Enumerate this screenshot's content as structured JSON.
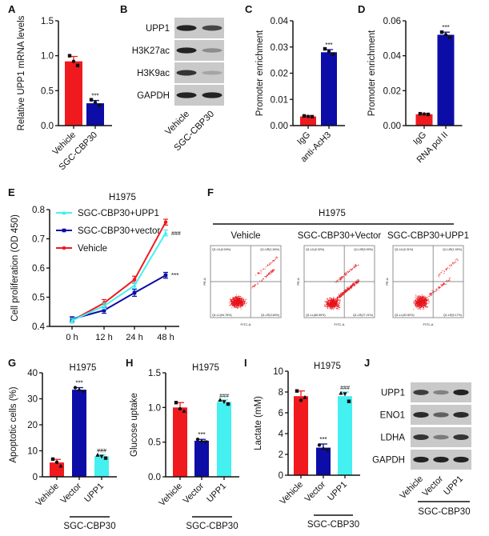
{
  "colors": {
    "red": "#f01a1e",
    "blue": "#0c0ca6",
    "cyan": "#45f0f0",
    "blot_bg": "#c9c9c9",
    "band": "#1a1a1a",
    "dot": "#e8141c"
  },
  "chart_data": [
    {
      "panel": "A",
      "type": "bar",
      "ylabel": "Relative UPP1 mRNA levels",
      "ylim": [
        0,
        1.5
      ],
      "yticks": [
        "0.0",
        "0.5",
        "1.0",
        "1.5"
      ],
      "ytick_values": [
        0,
        0.5,
        1.0,
        1.5
      ],
      "categories": [
        "Vehicle",
        "SGC-CBP30"
      ],
      "values": [
        0.92,
        0.32
      ],
      "errors": [
        0.07,
        0.04
      ],
      "replicates": [
        [
          1.0,
          0.92,
          0.86
        ],
        [
          0.37,
          0.33,
          0.29
        ]
      ],
      "colors": [
        "red",
        "blue"
      ],
      "annotations": [
        "",
        "***"
      ],
      "title": "",
      "group_label": ""
    },
    {
      "panel": "C",
      "type": "bar",
      "ylabel": "Promoter enrichment",
      "ylim": [
        0,
        0.04
      ],
      "yticks": [
        "0.00",
        "0.01",
        "0.02",
        "0.03",
        "0.04"
      ],
      "ytick_values": [
        0,
        0.01,
        0.02,
        0.03,
        0.04
      ],
      "categories": [
        "IgG",
        "anti-AcH3"
      ],
      "values": [
        0.0035,
        0.028
      ],
      "errors": [
        0.0003,
        0.001
      ],
      "replicates": [
        [
          0.0037,
          0.0035,
          0.0034
        ],
        [
          0.0293,
          0.0283,
          0.0273
        ]
      ],
      "colors": [
        "red",
        "blue"
      ],
      "annotations": [
        "",
        "***"
      ],
      "title": "",
      "group_label": ""
    },
    {
      "panel": "D",
      "type": "bar",
      "ylabel": "Promoter enrichment",
      "ylim": [
        0,
        0.06
      ],
      "yticks": [
        "0.00",
        "0.02",
        "0.04",
        "0.06"
      ],
      "ytick_values": [
        0,
        0.02,
        0.04,
        0.06
      ],
      "categories": [
        "IgG",
        "RNA pol II"
      ],
      "values": [
        0.0065,
        0.052
      ],
      "errors": [
        0.0004,
        0.0015
      ],
      "replicates": [
        [
          0.0068,
          0.0066,
          0.0064
        ],
        [
          0.0535,
          0.052,
          0.0505
        ]
      ],
      "colors": [
        "red",
        "blue"
      ],
      "annotations": [
        "",
        "***"
      ],
      "title": "",
      "group_label": ""
    },
    {
      "panel": "E",
      "type": "line",
      "title": "H1975",
      "ylabel": "Cell proliferation (OD 450)",
      "xlabel": "",
      "x": [
        "0 h",
        "12 h",
        "24 h",
        "48 h"
      ],
      "ylim": [
        0.4,
        0.8
      ],
      "yticks": [
        "0.4",
        "0.5",
        "0.6",
        "0.7",
        "0.8"
      ],
      "ytick_values": [
        0.4,
        0.5,
        0.6,
        0.7,
        0.8
      ],
      "legend_position": "top-left",
      "series": [
        {
          "name": "SGC-CBP30+UPP1",
          "color": "cyan",
          "marker": "triangle",
          "values": [
            0.42,
            0.47,
            0.54,
            0.72
          ],
          "errors": [
            0.008,
            0.01,
            0.01,
            0.01
          ],
          "annotation": "###"
        },
        {
          "name": "SGC-CBP30+vector",
          "color": "blue",
          "marker": "square",
          "values": [
            0.425,
            0.455,
            0.515,
            0.575
          ],
          "errors": [
            0.008,
            0.01,
            0.012,
            0.01
          ],
          "annotation": "***"
        },
        {
          "name": "Vehicle",
          "color": "red",
          "marker": "circle",
          "values": [
            0.42,
            0.48,
            0.56,
            0.757
          ],
          "errors": [
            0.008,
            0.012,
            0.012,
            0.01
          ],
          "annotation": ""
        }
      ]
    },
    {
      "panel": "G",
      "type": "bar",
      "title": "H1975",
      "ylabel": "Apoptotic cells (%)",
      "ylim": [
        0,
        40
      ],
      "yticks": [
        "0",
        "10",
        "20",
        "30",
        "40"
      ],
      "ytick_values": [
        0,
        10,
        20,
        30,
        40
      ],
      "categories": [
        "Vehicle",
        "Vector",
        "UPP1"
      ],
      "values": [
        5.5,
        33.5,
        7.8
      ],
      "errors": [
        1.2,
        0.8,
        0.6
      ],
      "replicates": [
        [
          6.8,
          5.6,
          4.2
        ],
        [
          34.3,
          33.6,
          32.7
        ],
        [
          8.4,
          7.8,
          7.2
        ]
      ],
      "colors": [
        "red",
        "blue",
        "cyan"
      ],
      "annotations": [
        "",
        "***",
        "###"
      ],
      "group_label": "SGC-CBP30"
    },
    {
      "panel": "H",
      "type": "bar",
      "title": "H1975",
      "ylabel": "Glucose uptake",
      "ylim": [
        0,
        1.5
      ],
      "yticks": [
        "0.0",
        "0.5",
        "1.0",
        "1.5"
      ],
      "ytick_values": [
        0,
        0.5,
        1.0,
        1.5
      ],
      "categories": [
        "Vehicle",
        "Vector",
        "UPP1"
      ],
      "values": [
        1.0,
        0.52,
        1.08
      ],
      "errors": [
        0.07,
        0.02,
        0.03
      ],
      "replicates": [
        [
          1.07,
          0.98,
          0.95
        ],
        [
          0.54,
          0.52,
          0.5
        ],
        [
          1.11,
          1.08,
          1.05
        ]
      ],
      "colors": [
        "red",
        "blue",
        "cyan"
      ],
      "annotations": [
        "",
        "***",
        "###"
      ],
      "group_label": "SGC-CBP30"
    },
    {
      "panel": "I",
      "type": "bar",
      "title": "H1975",
      "ylabel": "Lactate (mM)",
      "ylim": [
        0,
        10
      ],
      "yticks": [
        "0",
        "2",
        "4",
        "6",
        "8",
        "10"
      ],
      "ytick_values": [
        0,
        2,
        4,
        6,
        8,
        10
      ],
      "categories": [
        "Vehicle",
        "Vector",
        "UPP1"
      ],
      "values": [
        7.6,
        2.65,
        7.6
      ],
      "errors": [
        0.5,
        0.35,
        0.4
      ],
      "replicates": [
        [
          8.1,
          7.2,
          7.5
        ],
        [
          2.9,
          2.6,
          2.4
        ],
        [
          7.9,
          7.8,
          7.1
        ]
      ],
      "colors": [
        "red",
        "blue",
        "cyan"
      ],
      "annotations": [
        "",
        "***",
        "###"
      ],
      "group_label": "SGC-CBP30"
    }
  ],
  "panel_letters": {
    "A": "A",
    "B": "B",
    "C": "C",
    "D": "D",
    "E": "E",
    "F": "F",
    "G": "G",
    "H": "H",
    "I": "I",
    "J": "J"
  },
  "blot_B": {
    "rows": [
      {
        "label": "UPP1",
        "band_intensity": [
          0.95,
          0.75
        ]
      },
      {
        "label": "H3K27ac",
        "band_intensity": [
          0.95,
          0.35
        ]
      },
      {
        "label": "H3K9ac",
        "band_intensity": [
          0.85,
          0.2
        ]
      },
      {
        "label": "GAPDH",
        "band_intensity": [
          0.95,
          0.95
        ]
      }
    ],
    "lanes": [
      "Vehicle",
      "SGC-CBP30"
    ],
    "group_label": ""
  },
  "blot_J": {
    "rows": [
      {
        "label": "UPP1",
        "band_intensity": [
          0.8,
          0.4,
          0.95
        ]
      },
      {
        "label": "ENO1",
        "band_intensity": [
          0.9,
          0.6,
          0.9
        ]
      },
      {
        "label": "LDHA",
        "band_intensity": [
          0.85,
          0.45,
          0.85
        ]
      },
      {
        "label": "GAPDH",
        "band_intensity": [
          0.95,
          0.95,
          0.95
        ]
      }
    ],
    "lanes": [
      "Vehicle",
      "Vector",
      "UPP1"
    ],
    "group_label": "SGC-CBP30"
  },
  "flow_F": {
    "title": "H1975",
    "xaxis": "FITC-A",
    "yaxis": "PE-A",
    "plots": [
      {
        "label": "Vehicle",
        "quadrants": {
          "UL": "Q1-UL(0.04%)",
          "UR": "Q1-UR(1.54%)",
          "LL": "Q1-LL(94.78%)",
          "LR": "Q1-LR(3.64%)"
        }
      },
      {
        "label": "SGC-CBP30+Vector",
        "quadrants": {
          "UL": "Q1-UL(0.32%)",
          "UR": "Q1-UR(5.93%)",
          "LL": "Q1-LL(66.55%)",
          "LR": "Q1-LR(27.21%)"
        }
      },
      {
        "label": "SGC-CBP30+UPP1",
        "quadrants": {
          "UL": "Q1-UL(0.31%)",
          "UR": "Q1-UR(1.92%)",
          "LL": "Q1-LL(92.60%)",
          "LR": "Q1-LR(5.17%)"
        }
      }
    ]
  }
}
